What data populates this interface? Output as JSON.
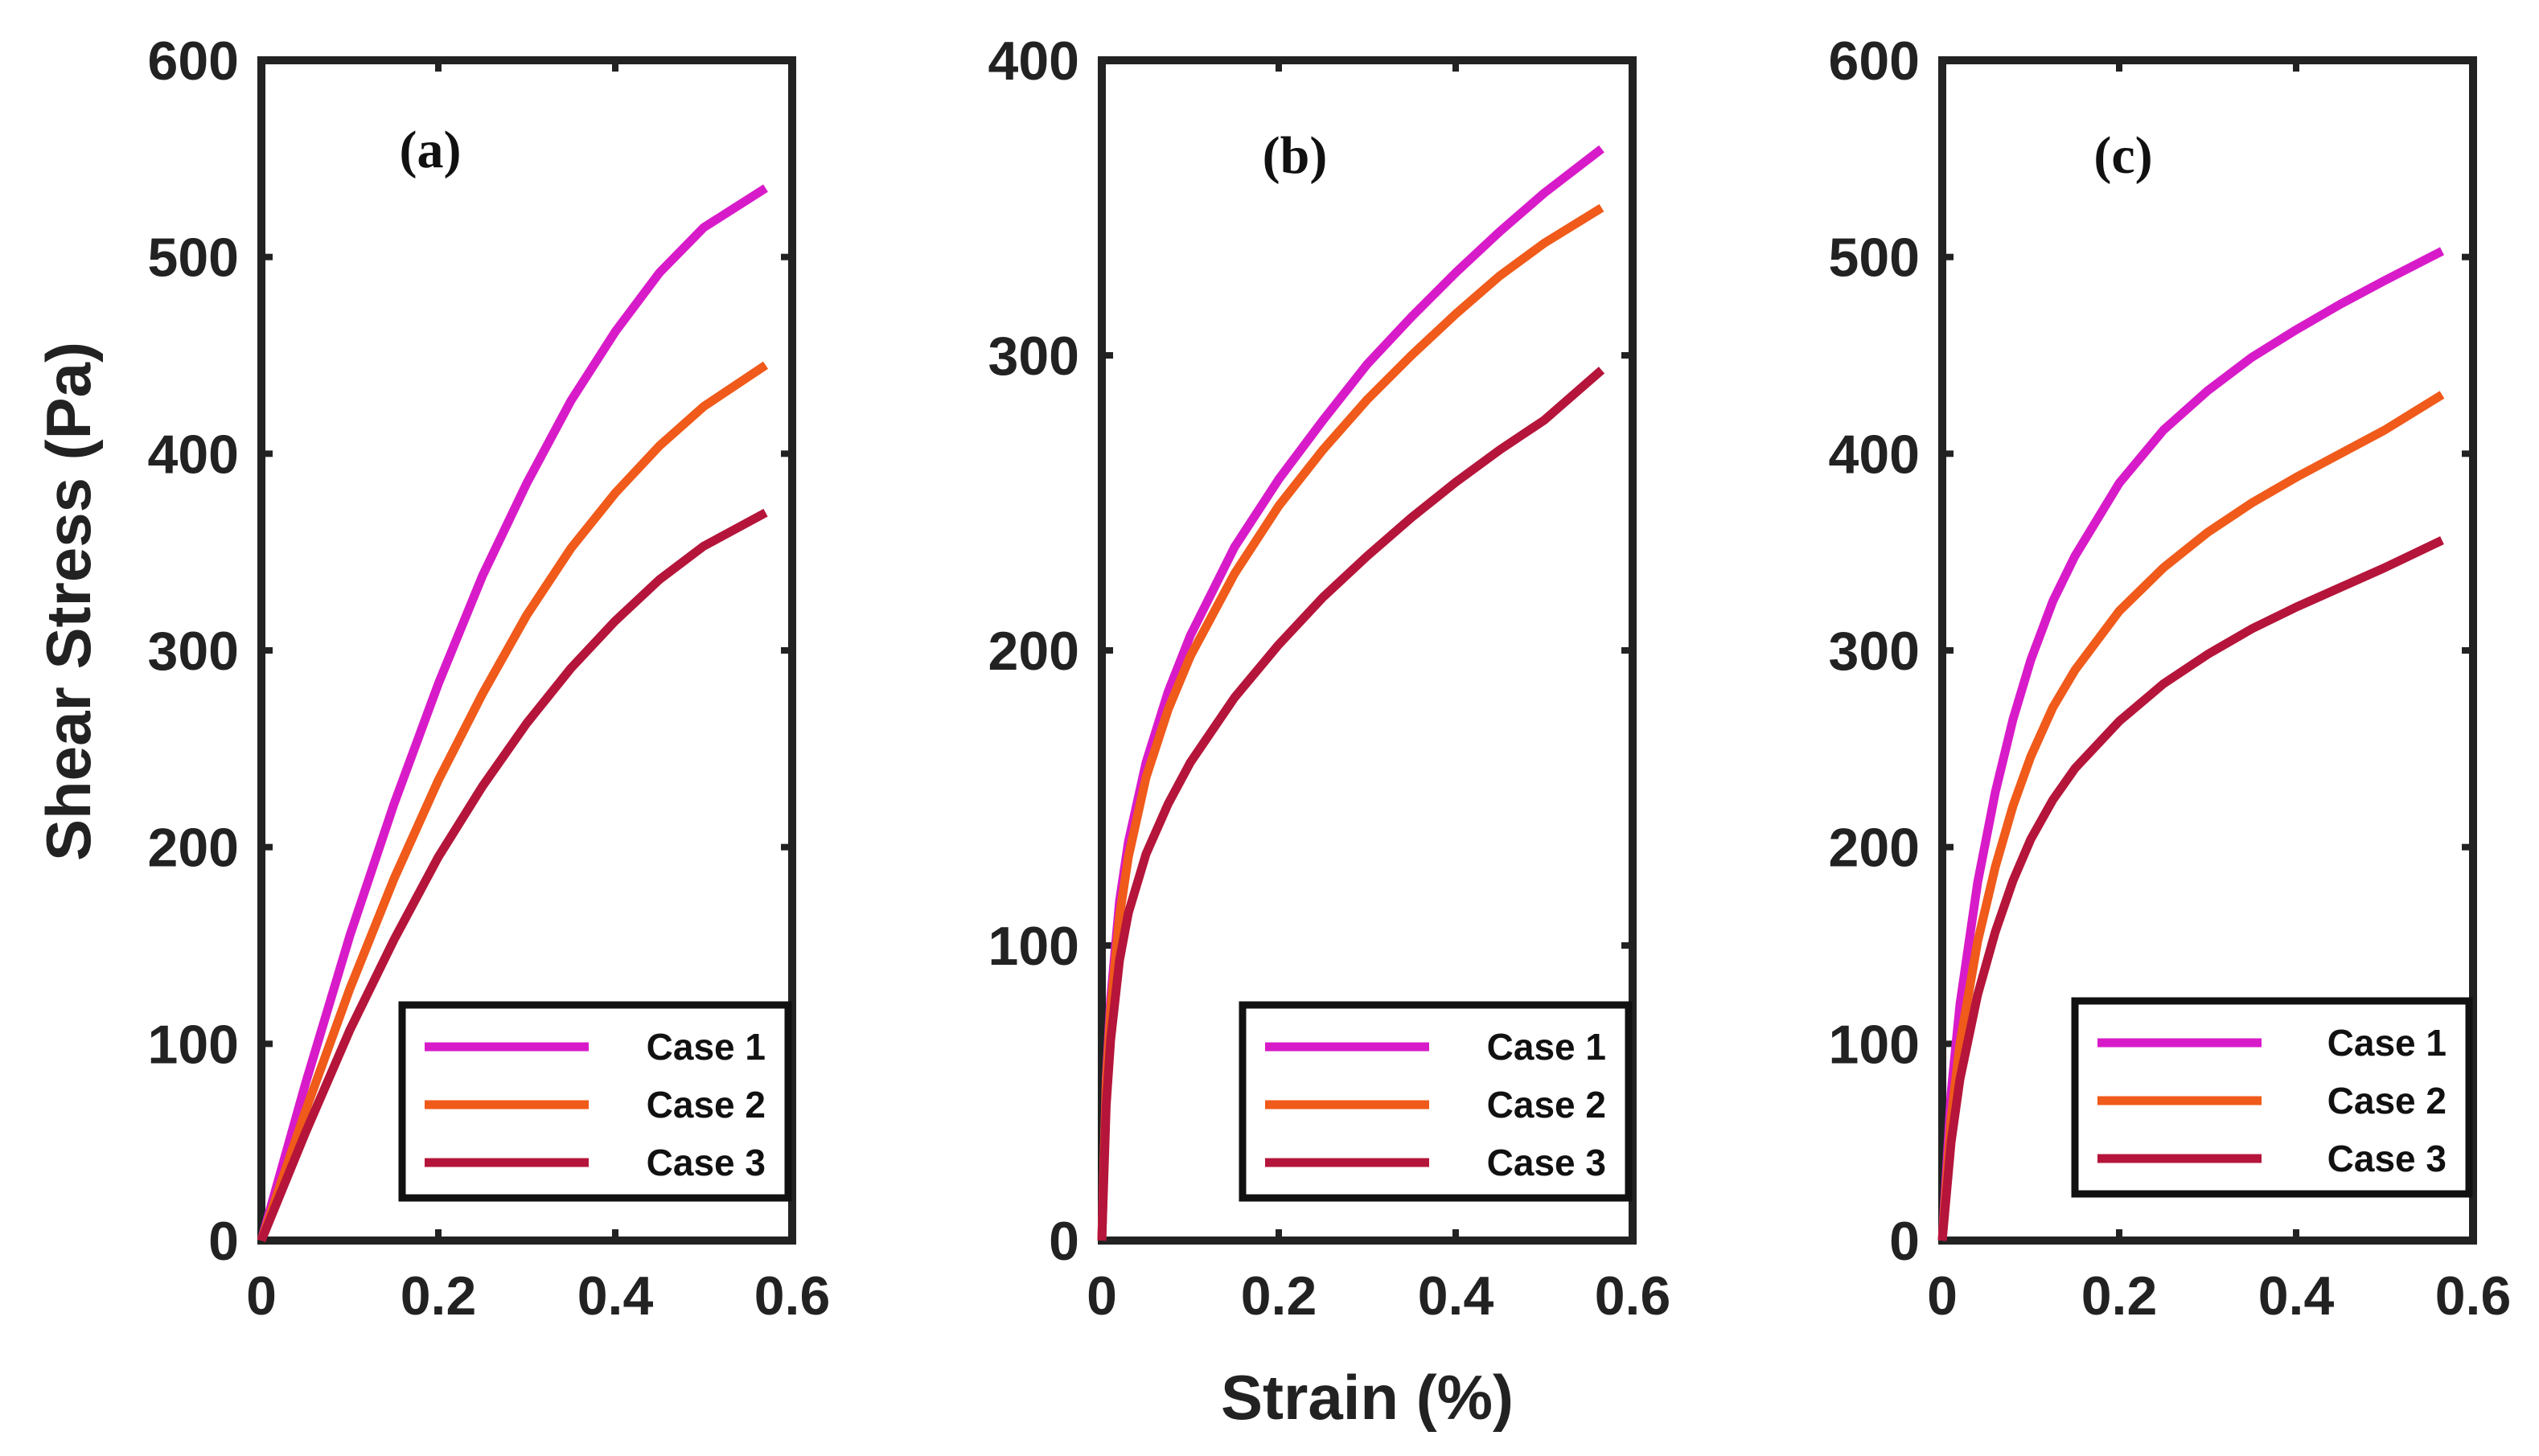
{
  "chart_data": [
    {
      "type": "line",
      "panel_label": "(a)",
      "ylabel": "Shear Stress (Pa)",
      "xlim": [
        0,
        0.6
      ],
      "ylim": [
        0,
        600
      ],
      "xticks": [
        "0",
        "0.2",
        "0.4",
        "0.6"
      ],
      "yticks": [
        "0",
        "100",
        "200",
        "300",
        "400",
        "500",
        "600"
      ],
      "legend_position": "bottom-right",
      "x": [
        0,
        0.05,
        0.1,
        0.15,
        0.2,
        0.25,
        0.3,
        0.35,
        0.4,
        0.45,
        0.5,
        0.57
      ],
      "series": [
        {
          "name": "Case 1",
          "color": "#d81bc9",
          "values": [
            0,
            80,
            155,
            222,
            283,
            338,
            385,
            427,
            462,
            492,
            515,
            535
          ]
        },
        {
          "name": "Case 2",
          "color": "#f05a1a",
          "values": [
            0,
            66,
            128,
            184,
            234,
            278,
            318,
            352,
            380,
            404,
            424,
            445
          ]
        },
        {
          "name": "Case 3",
          "color": "#b5153a",
          "values": [
            0,
            55,
            107,
            153,
            195,
            231,
            263,
            291,
            315,
            336,
            353,
            370
          ]
        }
      ]
    },
    {
      "type": "line",
      "panel_label": "(b)",
      "xlabel": "Strain (%)",
      "xlim": [
        0,
        0.6
      ],
      "ylim": [
        0,
        400
      ],
      "xticks": [
        "0",
        "0.2",
        "0.4",
        "0.6"
      ],
      "yticks": [
        "0",
        "100",
        "200",
        "300",
        "400"
      ],
      "legend_position": "bottom-right",
      "x": [
        0,
        0.005,
        0.01,
        0.02,
        0.03,
        0.05,
        0.075,
        0.1,
        0.15,
        0.2,
        0.25,
        0.3,
        0.35,
        0.4,
        0.45,
        0.5,
        0.565
      ],
      "series": [
        {
          "name": "Case 1",
          "color": "#d81bc9",
          "values": [
            0,
            55,
            82,
            115,
            135,
            162,
            186,
            205,
            235,
            258,
            278,
            297,
            313,
            328,
            342,
            355,
            370
          ]
        },
        {
          "name": "Case 2",
          "color": "#f05a1a",
          "values": [
            0,
            53,
            78,
            110,
            130,
            157,
            180,
            198,
            226,
            249,
            268,
            285,
            300,
            314,
            327,
            338,
            350
          ]
        },
        {
          "name": "Case 3",
          "color": "#b5153a",
          "values": [
            0,
            46,
            68,
            95,
            111,
            131,
            148,
            162,
            184,
            202,
            218,
            232,
            245,
            257,
            268,
            278,
            295
          ]
        }
      ]
    },
    {
      "type": "line",
      "panel_label": "(c)",
      "xlim": [
        0,
        0.6
      ],
      "ylim": [
        0,
        600
      ],
      "xticks": [
        "0",
        "0.2",
        "0.4",
        "0.6"
      ],
      "yticks": [
        "0",
        "100",
        "200",
        "300",
        "400",
        "500",
        "600"
      ],
      "legend_position": "bottom-right",
      "x": [
        0,
        0.01,
        0.02,
        0.04,
        0.06,
        0.08,
        0.1,
        0.125,
        0.15,
        0.2,
        0.25,
        0.3,
        0.35,
        0.4,
        0.45,
        0.5,
        0.565
      ],
      "series": [
        {
          "name": "Case 1",
          "color": "#d81bc9",
          "values": [
            0,
            75,
            120,
            182,
            228,
            265,
            295,
            325,
            348,
            385,
            412,
            432,
            449,
            463,
            476,
            488,
            503
          ]
        },
        {
          "name": "Case 2",
          "color": "#f05a1a",
          "values": [
            0,
            62,
            100,
            152,
            190,
            221,
            246,
            271,
            290,
            320,
            342,
            360,
            375,
            388,
            400,
            412,
            430
          ]
        },
        {
          "name": "Case 3",
          "color": "#b5153a",
          "values": [
            0,
            50,
            82,
            125,
            157,
            183,
            204,
            224,
            240,
            264,
            283,
            298,
            311,
            322,
            332,
            342,
            356
          ]
        }
      ]
    }
  ]
}
